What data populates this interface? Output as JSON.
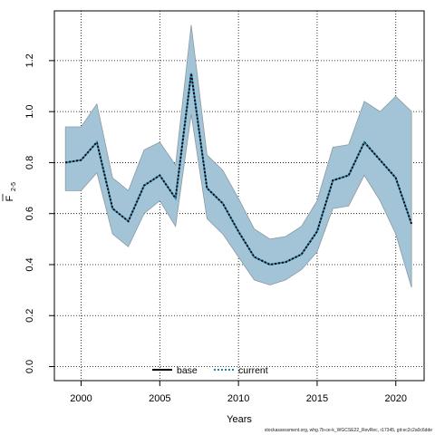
{
  "footer": "stockassessment.org, whg.7b-ce-k_WGCSE22_RevRec, r17345, git:ec2c2a0c6dde",
  "colors": {
    "band_fill": "#a3c4d6",
    "band_stroke": "#8a9aa2",
    "line": "#000000",
    "current_dots": "#2a7fa8",
    "grid": "#000000"
  },
  "chart_data": {
    "type": "line",
    "title": "",
    "xlabel": "Years",
    "ylabel_main": "F",
    "ylabel_sub": "2-5",
    "xlim": [
      1998.3,
      2021.8
    ],
    "ylim": [
      -0.055,
      1.395
    ],
    "x_ticks": [
      2000,
      2005,
      2010,
      2015,
      2020
    ],
    "y_ticks": [
      0.0,
      0.2,
      0.4,
      0.6,
      0.8,
      1.0,
      1.2
    ],
    "y_tick_labels": [
      "0.0",
      "0.2",
      "0.4",
      "0.6",
      "0.8",
      "1.0",
      "1.2"
    ],
    "grid": true,
    "legend_position": "bottom-center",
    "legend": [
      {
        "name": "base",
        "style": "solid"
      },
      {
        "name": "current",
        "style": "dotted"
      }
    ],
    "x": [
      1999,
      2000,
      2001,
      2002,
      2003,
      2004,
      2005,
      2006,
      2007,
      2008,
      2009,
      2010,
      2011,
      2012,
      2013,
      2014,
      2015,
      2016,
      2017,
      2018,
      2019,
      2020,
      2021
    ],
    "series": [
      {
        "name": "base",
        "values": [
          0.8,
          0.81,
          0.88,
          0.62,
          0.57,
          0.71,
          0.75,
          0.66,
          1.15,
          0.7,
          0.64,
          0.53,
          0.43,
          0.4,
          0.41,
          0.44,
          0.53,
          0.73,
          0.75,
          0.88,
          0.81,
          0.74,
          0.56
        ]
      },
      {
        "name": "current",
        "values": [
          0.8,
          0.81,
          0.88,
          0.62,
          0.57,
          0.71,
          0.75,
          0.66,
          1.15,
          0.7,
          0.64,
          0.53,
          0.43,
          0.4,
          0.41,
          0.44,
          0.53,
          0.73,
          0.75,
          0.88,
          0.81,
          0.74,
          0.56
        ]
      }
    ],
    "band": {
      "upper": [
        0.94,
        0.94,
        1.03,
        0.74,
        0.69,
        0.85,
        0.88,
        0.79,
        1.34,
        0.83,
        0.77,
        0.66,
        0.54,
        0.5,
        0.51,
        0.55,
        0.65,
        0.86,
        0.87,
        1.04,
        1.0,
        1.06,
        1.0
      ],
      "lower": [
        0.69,
        0.69,
        0.76,
        0.52,
        0.47,
        0.6,
        0.65,
        0.55,
        0.99,
        0.58,
        0.52,
        0.43,
        0.34,
        0.32,
        0.34,
        0.38,
        0.45,
        0.62,
        0.63,
        0.75,
        0.65,
        0.52,
        0.31
      ]
    }
  }
}
